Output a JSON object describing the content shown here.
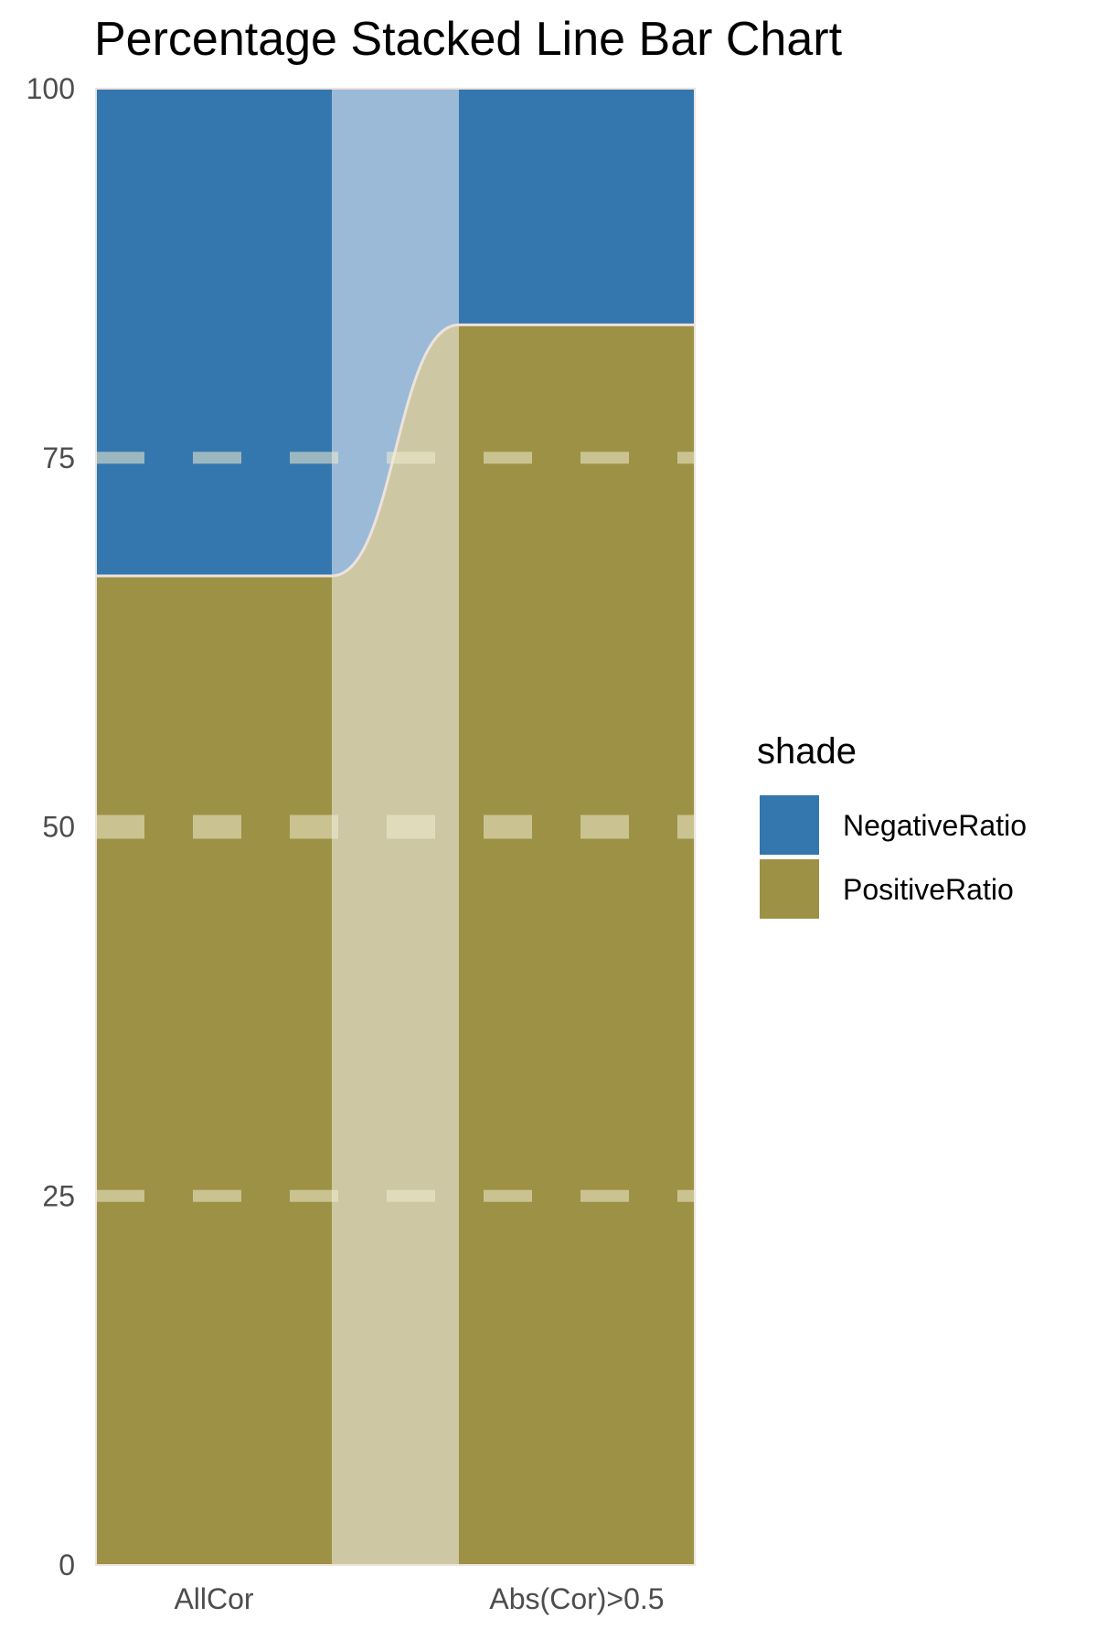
{
  "chart_data": {
    "type": "bar",
    "title": "Percentage Stacked Line Bar Chart",
    "xlabel": "",
    "ylabel": "",
    "categories": [
      "AllCor",
      "Abs(Cor)>0.5"
    ],
    "ylim": [
      0,
      100
    ],
    "yticks": [
      0,
      25,
      50,
      75,
      100
    ],
    "stacked": true,
    "percentage": true,
    "series": [
      {
        "name": "PositiveRatio",
        "values": [
          67,
          84
        ]
      },
      {
        "name": "NegativeRatio",
        "values": [
          33,
          16
        ]
      }
    ],
    "legend": {
      "title": "shade",
      "position": "right",
      "entries": [
        "NegativeRatio",
        "PositiveRatio"
      ]
    },
    "grid": "dashed horizontal gridlines drawn over bars",
    "connector": "smooth ribbon between bars"
  },
  "colors": {
    "NegativeRatio": "#3477ae",
    "PositiveRatio": "#9c9145",
    "NegativeRatio_link": "#9bbad7",
    "PositiveRatio_link": "#cdc8a3",
    "boundary": "#eee2dd",
    "grid": "#f0eccf",
    "tick_text": "#4d4d4d"
  }
}
